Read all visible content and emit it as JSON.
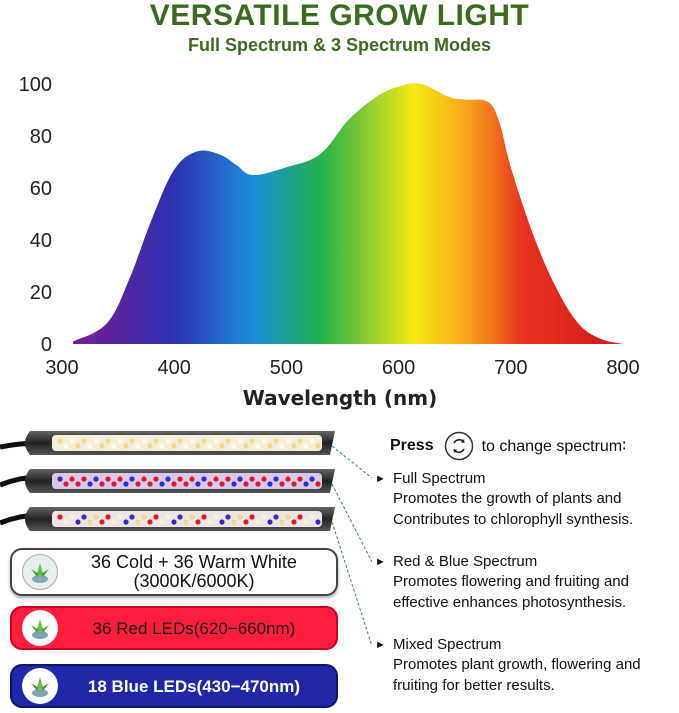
{
  "header": {
    "title": "VERSATILE GROW LIGHT",
    "subtitle": "Full Spectrum & 3 Spectrum Modes"
  },
  "chart_data": {
    "type": "area",
    "title": "",
    "xlabel": "Wavelength (nm)",
    "ylabel": "",
    "xlim": [
      300,
      800
    ],
    "ylim": [
      0,
      100
    ],
    "x_ticks": [
      "300",
      "400",
      "500",
      "600",
      "700",
      "800"
    ],
    "y_ticks": [
      "0",
      "20",
      "40",
      "60",
      "80",
      "100"
    ],
    "grid": false,
    "legend": "none",
    "series": [
      {
        "x": [
          310,
          340,
          360,
          380,
          400,
          420,
          440,
          455,
          470,
          500,
          530,
          555,
          580,
          600,
          620,
          645,
          660,
          680,
          690,
          700,
          720,
          740,
          760,
          780,
          800
        ],
        "y": [
          1,
          8,
          25,
          48,
          67,
          74,
          73,
          69,
          65,
          68,
          73,
          86,
          95,
          99,
          100,
          95,
          94,
          93,
          85,
          68,
          42,
          22,
          8,
          2,
          0
        ]
      }
    ],
    "gradient_colors": [
      "#7a1d8f",
      "#2d2fb0",
      "#1c8fd9",
      "#21b04a",
      "#f5ea14",
      "#f7a21b",
      "#e8301e",
      "#d21a1a"
    ]
  },
  "spectrum_info": {
    "press_label": "Press",
    "press_suffix": "to change spectrum∶",
    "cycle_icon": "cycle-arrows-icon",
    "modes": [
      {
        "name": "Full Spectrum",
        "desc_1": "Promotes the growth of plants and",
        "desc_2": "Contributes to chlorophyll synthesis."
      },
      {
        "name": "Red & Blue Spectrum",
        "desc_1": "Promotes flowering and fruiting and",
        "desc_2": "effective enhances photosynthesis."
      },
      {
        "name": "Mixed Spectrum",
        "desc_1": "Promotes plant growth, flowering and",
        "desc_2": "fruiting for better results."
      }
    ]
  },
  "led_badges": {
    "white_line1": "36 Cold + 36 Warm White",
    "white_line2": "(3000K/6000K)",
    "red": "36 Red LEDs(620−660nm)",
    "blue": "18 Blue LEDs(430−470nm)",
    "plant_icon": "succulent-plant-icon"
  },
  "colors": {
    "title_green": "#3a6b1f",
    "red_badge": "#ff1d3c",
    "blue_badge": "#2027a8"
  }
}
